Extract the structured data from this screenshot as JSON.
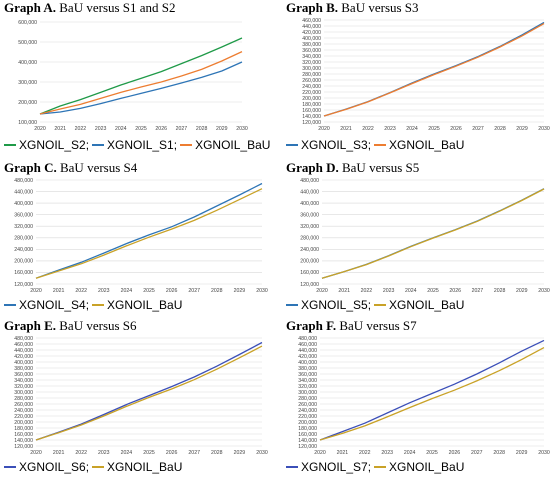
{
  "panels": [
    {
      "title_bold": "Graph A.",
      "title_rest": "BaU versus S1 and S2",
      "legend_labels": [
        "XGNOIL_S2;",
        "XGNOIL_S1;",
        "XGNOIL_BaU"
      ]
    },
    {
      "title_bold": "Graph B.",
      "title_rest": "BaU versus S3",
      "legend_labels": [
        "XGNOIL_S3;",
        "XGNOIL_BaU"
      ]
    },
    {
      "title_bold": "Graph C.",
      "title_rest": "BaU versus S4",
      "legend_labels": [
        "XGNOIL_S4;",
        "XGNOIL_BaU"
      ]
    },
    {
      "title_bold": "Graph D.",
      "title_rest": "BaU versus S5",
      "legend_labels": [
        "XGNOIL_S5;",
        "XGNOIL_BaU"
      ]
    },
    {
      "title_bold": "Graph E.",
      "title_rest": "BaU versus S6",
      "legend_labels": [
        "XGNOIL_S6;",
        "XGNOIL_BaU"
      ]
    },
    {
      "title_bold": "Graph F.",
      "title_rest": "BaU versus S7",
      "legend_labels": [
        "XGNOIL_S7;",
        "XGNOIL_BaU"
      ]
    }
  ],
  "chart_data": [
    {
      "type": "line",
      "x": [
        2020,
        2021,
        2022,
        2023,
        2024,
        2025,
        2026,
        2027,
        2028,
        2029,
        2030
      ],
      "xtick_labels": [
        "2020",
        "2021",
        "2022",
        "2023",
        "2024",
        "2025",
        "2026",
        "2027",
        "2028",
        "2029",
        "2030"
      ],
      "ylim": [
        100000,
        600000
      ],
      "yticks": [
        100000,
        200000,
        300000,
        400000,
        500000,
        600000
      ],
      "ytick_labels": [
        "100,000",
        "200,000",
        "300,000",
        "400,000",
        "500,000",
        "600,000"
      ],
      "series": [
        {
          "name": "XGNOIL_S2",
          "color": "#1f9a48",
          "values": [
            140000,
            180000,
            212000,
            248000,
            285000,
            318000,
            352000,
            392000,
            432000,
            475000,
            520000
          ]
        },
        {
          "name": "XGNOIL_S1",
          "color": "#2e75b6",
          "values": [
            140000,
            150000,
            168000,
            192000,
            218000,
            243000,
            268000,
            295000,
            323000,
            355000,
            400000
          ]
        },
        {
          "name": "XGNOIL_BaU",
          "color": "#ed7d31",
          "values": [
            140000,
            165000,
            188000,
            218000,
            248000,
            275000,
            300000,
            330000,
            363000,
            405000,
            452000
          ]
        }
      ],
      "grid": true,
      "legend": "bottom"
    },
    {
      "type": "line",
      "x": [
        2020,
        2021,
        2022,
        2023,
        2024,
        2025,
        2026,
        2027,
        2028,
        2029,
        2030
      ],
      "xtick_labels": [
        "2020",
        "2021",
        "2022",
        "2023",
        "2024",
        "2025",
        "2026",
        "2027",
        "2028",
        "2029",
        "2030"
      ],
      "ylim": [
        120000,
        460000
      ],
      "yticks": [
        120000,
        140000,
        160000,
        180000,
        200000,
        220000,
        240000,
        260000,
        280000,
        300000,
        320000,
        340000,
        360000,
        380000,
        400000,
        420000,
        440000,
        460000
      ],
      "ytick_labels": [
        "120,000",
        "140,000",
        "160,000",
        "180,000",
        "200,000",
        "220,000",
        "240,000",
        "260,000",
        "280,000",
        "300,000",
        "320,000",
        "340,000",
        "360,000",
        "380,000",
        "400,000",
        "420,000",
        "440,000",
        "460,000"
      ],
      "series": [
        {
          "name": "XGNOIL_S3",
          "color": "#2e75b6",
          "values": [
            140000,
            163000,
            188000,
            218000,
            250000,
            280000,
            308000,
            338000,
            372000,
            410000,
            452000
          ]
        },
        {
          "name": "XGNOIL_BaU",
          "color": "#ed7d31",
          "values": [
            140000,
            162000,
            187000,
            217000,
            248000,
            278000,
            306000,
            336000,
            370000,
            407000,
            448000
          ]
        }
      ],
      "grid": true,
      "legend": "bottom"
    },
    {
      "type": "line",
      "x": [
        2020,
        2021,
        2022,
        2023,
        2024,
        2025,
        2026,
        2027,
        2028,
        2029,
        2030
      ],
      "xtick_labels": [
        "2020",
        "2021",
        "2022",
        "2023",
        "2024",
        "2025",
        "2026",
        "2027",
        "2028",
        "2029",
        "2030"
      ],
      "ylim": [
        120000,
        480000
      ],
      "yticks": [
        120000,
        160000,
        200000,
        240000,
        280000,
        320000,
        360000,
        400000,
        440000,
        480000
      ],
      "ytick_labels": [
        "120,000",
        "160,000",
        "200,000",
        "240,000",
        "280,000",
        "320,000",
        "360,000",
        "400,000",
        "440,000",
        "480,000"
      ],
      "series": [
        {
          "name": "XGNOIL_S4",
          "color": "#2e75b6",
          "values": [
            140000,
            168000,
            195000,
            227000,
            260000,
            290000,
            318000,
            352000,
            390000,
            428000,
            468000
          ]
        },
        {
          "name": "XGNOIL_BaU",
          "color": "#c9a227",
          "values": [
            140000,
            165000,
            190000,
            220000,
            252000,
            282000,
            310000,
            340000,
            375000,
            412000,
            450000
          ]
        }
      ],
      "grid": true,
      "legend": "bottom"
    },
    {
      "type": "line",
      "x": [
        2020,
        2021,
        2022,
        2023,
        2024,
        2025,
        2026,
        2027,
        2028,
        2029,
        2030
      ],
      "xtick_labels": [
        "2020",
        "2021",
        "2022",
        "2023",
        "2024",
        "2025",
        "2026",
        "2027",
        "2028",
        "2029",
        "2030"
      ],
      "ylim": [
        120000,
        480000
      ],
      "yticks": [
        120000,
        160000,
        200000,
        240000,
        280000,
        320000,
        360000,
        400000,
        440000,
        480000
      ],
      "ytick_labels": [
        "120,000",
        "160,000",
        "200,000",
        "240,000",
        "280,000",
        "320,000",
        "360,000",
        "400,000",
        "440,000",
        "480,000"
      ],
      "series": [
        {
          "name": "XGNOIL_S5",
          "color": "#2e75b6",
          "values": [
            140000,
            163000,
            188000,
            218000,
            250000,
            280000,
            308000,
            338000,
            373000,
            410000,
            450000
          ]
        },
        {
          "name": "XGNOIL_BaU",
          "color": "#c9a227",
          "values": [
            140000,
            163000,
            187000,
            217000,
            249000,
            279000,
            307000,
            337000,
            372000,
            409000,
            449000
          ]
        }
      ],
      "grid": true,
      "legend": "bottom"
    },
    {
      "type": "line",
      "x": [
        2020,
        2021,
        2022,
        2023,
        2024,
        2025,
        2026,
        2027,
        2028,
        2029,
        2030
      ],
      "xtick_labels": [
        "2020",
        "2021",
        "2022",
        "2023",
        "2024",
        "2025",
        "2026",
        "2027",
        "2028",
        "2029",
        "2030"
      ],
      "ylim": [
        120000,
        480000
      ],
      "yticks": [
        120000,
        140000,
        160000,
        180000,
        200000,
        220000,
        240000,
        260000,
        280000,
        300000,
        320000,
        340000,
        360000,
        380000,
        400000,
        420000,
        440000,
        460000,
        480000
      ],
      "ytick_labels": [
        "120,000",
        "140,000",
        "160,000",
        "180,000",
        "200,000",
        "220,000",
        "240,000",
        "260,000",
        "280,000",
        "300,000",
        "320,000",
        "340,000",
        "360,000",
        "380,000",
        "400,000",
        "420,000",
        "440,000",
        "460,000",
        "480,000"
      ],
      "series": [
        {
          "name": "XGNOIL_S6",
          "color": "#3b4fb8",
          "values": [
            140000,
            166000,
            193000,
            225000,
            258000,
            288000,
            318000,
            350000,
            386000,
            425000,
            465000
          ]
        },
        {
          "name": "XGNOIL_BaU",
          "color": "#c9a227",
          "values": [
            140000,
            164000,
            190000,
            220000,
            252000,
            282000,
            310000,
            341000,
            376000,
            414000,
            453000
          ]
        }
      ],
      "grid": true,
      "legend": "bottom"
    },
    {
      "type": "line",
      "x": [
        2020,
        2021,
        2022,
        2023,
        2024,
        2025,
        2026,
        2027,
        2028,
        2029,
        2030
      ],
      "xtick_labels": [
        "2020",
        "2021",
        "2022",
        "2023",
        "2024",
        "2025",
        "2026",
        "2027",
        "2028",
        "2029",
        "2030"
      ],
      "ylim": [
        120000,
        480000
      ],
      "yticks": [
        120000,
        140000,
        160000,
        180000,
        200000,
        220000,
        240000,
        260000,
        280000,
        300000,
        320000,
        340000,
        360000,
        380000,
        400000,
        420000,
        440000,
        460000,
        480000
      ],
      "ytick_labels": [
        "120,000",
        "140,000",
        "160,000",
        "180,000",
        "200,000",
        "220,000",
        "240,000",
        "260,000",
        "280,000",
        "300,000",
        "320,000",
        "340,000",
        "360,000",
        "380,000",
        "400,000",
        "420,000",
        "440,000",
        "460,000",
        "480,000"
      ],
      "series": [
        {
          "name": "XGNOIL_S7",
          "color": "#3b4fb8",
          "values": [
            140000,
            168000,
            196000,
            230000,
            264000,
            295000,
            326000,
            360000,
            397000,
            436000,
            472000
          ]
        },
        {
          "name": "XGNOIL_BaU",
          "color": "#c9a227",
          "values": [
            140000,
            162000,
            187000,
            217000,
            248000,
            278000,
            306000,
            337000,
            371000,
            408000,
            448000
          ]
        }
      ],
      "grid": true,
      "legend": "bottom"
    }
  ]
}
